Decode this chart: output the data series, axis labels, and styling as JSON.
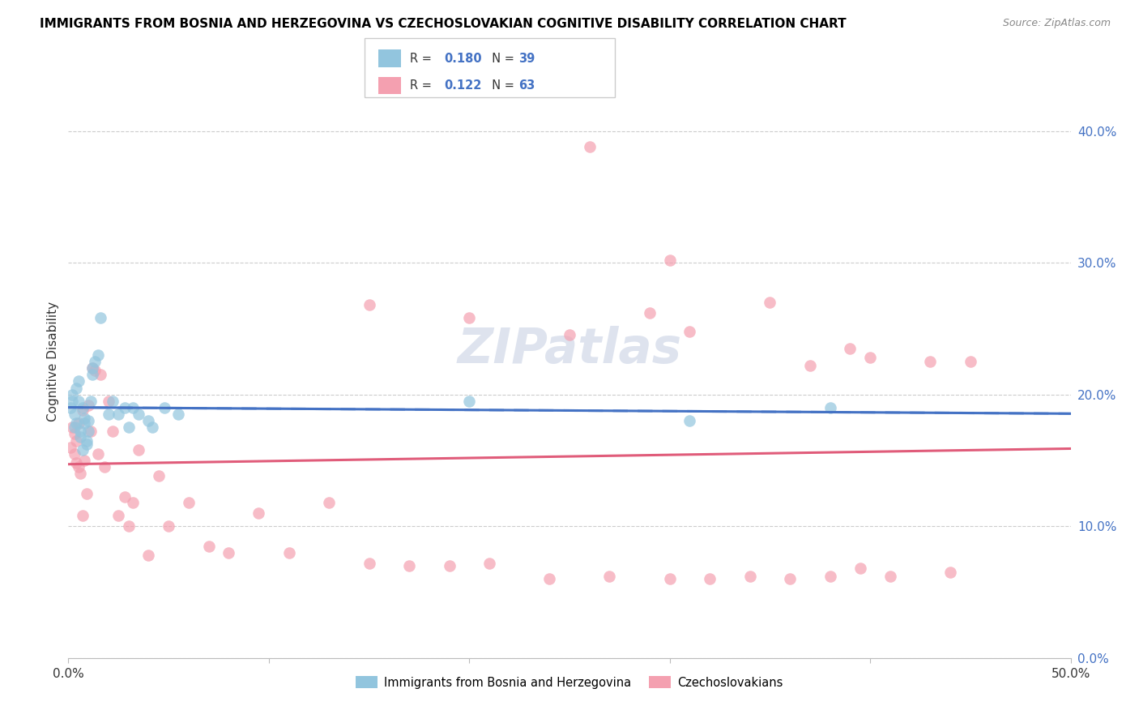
{
  "title": "IMMIGRANTS FROM BOSNIA AND HERZEGOVINA VS CZECHOSLOVAKIAN COGNITIVE DISABILITY CORRELATION CHART",
  "source": "Source: ZipAtlas.com",
  "ylabel": "Cognitive Disability",
  "right_yticks": [
    "0.0%",
    "10.0%",
    "20.0%",
    "30.0%",
    "40.0%"
  ],
  "right_ytick_vals": [
    0.0,
    0.1,
    0.2,
    0.3,
    0.4
  ],
  "legend_label1": "Immigrants from Bosnia and Herzegovina",
  "legend_label2": "Czechoslovakians",
  "r1": "0.180",
  "n1": "39",
  "r2": "0.122",
  "n2": "63",
  "color1": "#92C5DE",
  "color2": "#F4A0B0",
  "line_color1": "#4472C4",
  "line_color2": "#E05C7A",
  "watermark": "ZIPatlas",
  "xlim": [
    0.0,
    0.5
  ],
  "ylim": [
    0.0,
    0.45
  ],
  "bosnia_x": [
    0.001,
    0.002,
    0.002,
    0.003,
    0.003,
    0.004,
    0.004,
    0.005,
    0.005,
    0.006,
    0.006,
    0.007,
    0.007,
    0.008,
    0.008,
    0.009,
    0.009,
    0.01,
    0.01,
    0.011,
    0.012,
    0.012,
    0.013,
    0.015,
    0.016,
    0.02,
    0.022,
    0.025,
    0.028,
    0.03,
    0.032,
    0.035,
    0.04,
    0.042,
    0.048,
    0.055,
    0.2,
    0.31,
    0.38
  ],
  "bosnia_y": [
    0.19,
    0.195,
    0.2,
    0.185,
    0.175,
    0.205,
    0.178,
    0.21,
    0.195,
    0.172,
    0.168,
    0.158,
    0.19,
    0.178,
    0.182,
    0.165,
    0.162,
    0.18,
    0.172,
    0.195,
    0.22,
    0.215,
    0.225,
    0.23,
    0.258,
    0.185,
    0.195,
    0.185,
    0.19,
    0.175,
    0.19,
    0.185,
    0.18,
    0.175,
    0.19,
    0.185,
    0.195,
    0.18,
    0.19
  ],
  "czech_x": [
    0.001,
    0.002,
    0.003,
    0.003,
    0.004,
    0.004,
    0.005,
    0.005,
    0.006,
    0.007,
    0.007,
    0.008,
    0.009,
    0.01,
    0.011,
    0.012,
    0.013,
    0.015,
    0.016,
    0.018,
    0.02,
    0.022,
    0.025,
    0.028,
    0.03,
    0.032,
    0.035,
    0.04,
    0.045,
    0.05,
    0.06,
    0.07,
    0.08,
    0.095,
    0.11,
    0.13,
    0.15,
    0.17,
    0.19,
    0.21,
    0.24,
    0.27,
    0.3,
    0.32,
    0.34,
    0.36,
    0.38,
    0.395,
    0.41,
    0.44,
    0.15,
    0.2,
    0.25,
    0.3,
    0.35,
    0.4,
    0.43,
    0.45,
    0.29,
    0.31,
    0.26,
    0.37,
    0.39
  ],
  "czech_y": [
    0.16,
    0.175,
    0.155,
    0.17,
    0.148,
    0.165,
    0.178,
    0.145,
    0.14,
    0.188,
    0.108,
    0.15,
    0.125,
    0.192,
    0.172,
    0.22,
    0.218,
    0.155,
    0.215,
    0.145,
    0.195,
    0.172,
    0.108,
    0.122,
    0.1,
    0.118,
    0.158,
    0.078,
    0.138,
    0.1,
    0.118,
    0.085,
    0.08,
    0.11,
    0.08,
    0.118,
    0.072,
    0.07,
    0.07,
    0.072,
    0.06,
    0.062,
    0.06,
    0.06,
    0.062,
    0.06,
    0.062,
    0.068,
    0.062,
    0.065,
    0.268,
    0.258,
    0.245,
    0.302,
    0.27,
    0.228,
    0.225,
    0.225,
    0.262,
    0.248,
    0.388,
    0.222,
    0.235
  ]
}
